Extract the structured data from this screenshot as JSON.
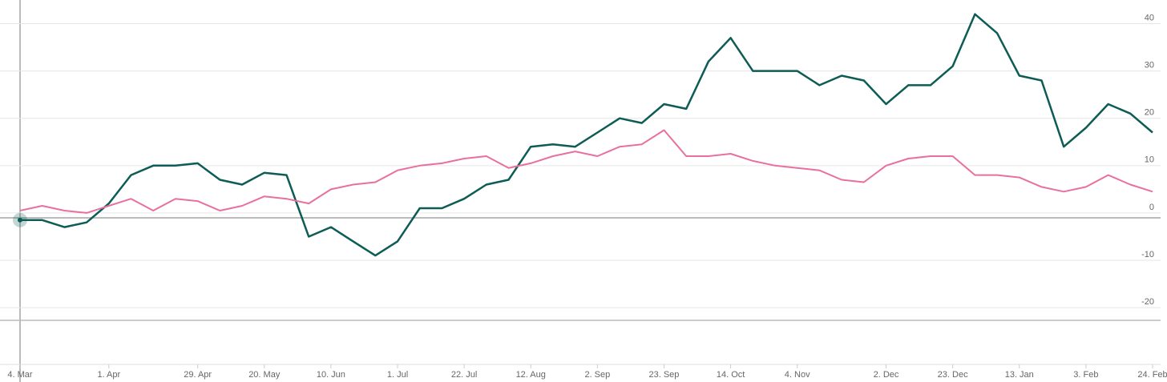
{
  "chart_data": {
    "type": "line",
    "categories": [
      "4. Mar",
      null,
      null,
      null,
      "1. Apr",
      null,
      null,
      null,
      "29. Apr",
      null,
      null,
      "20. May",
      null,
      null,
      "10. Jun",
      null,
      null,
      "1. Jul",
      null,
      null,
      "22. Jul",
      null,
      null,
      "12. Aug",
      null,
      null,
      "2. Sep",
      null,
      null,
      "23. Sep",
      null,
      null,
      "14. Oct",
      null,
      null,
      "4. Nov",
      null,
      null,
      null,
      "2. Dec",
      null,
      null,
      "23. Dec",
      null,
      null,
      "13. Jan",
      null,
      null,
      "3. Feb",
      null,
      null,
      "24. Feb"
    ],
    "series": [
      {
        "color": "#0d5c55",
        "values": [
          -1.5,
          -1.5,
          -3,
          -2,
          2,
          8,
          10,
          10,
          10.5,
          7,
          6,
          8.5,
          8,
          -5,
          -3,
          -6,
          -9,
          -6,
          1,
          1,
          3,
          6,
          7,
          14,
          14.5,
          14,
          17,
          20,
          19,
          23,
          22,
          32,
          37,
          30,
          30,
          30,
          27,
          29,
          28,
          23,
          27,
          27,
          31,
          42,
          38,
          29,
          28,
          14,
          18,
          23,
          21,
          17
        ]
      },
      {
        "color": "#e8709f",
        "values": [
          0.5,
          1.5,
          0.5,
          0,
          1.5,
          3,
          0.5,
          3,
          2.5,
          0.5,
          1.5,
          3.5,
          3,
          2,
          5,
          6,
          6.5,
          9,
          10,
          10.5,
          11.5,
          12,
          9.5,
          10.5,
          12,
          13,
          12,
          14,
          14.5,
          17.5,
          12,
          12,
          12.5,
          11,
          10,
          9.5,
          9,
          7,
          6.5,
          10,
          11.5,
          12,
          12,
          8,
          8,
          7.5,
          5.5,
          4.5,
          5.5,
          8,
          6,
          4.5
        ]
      }
    ],
    "ylim": [
      -32,
      45
    ],
    "yticks": [
      -20,
      -10,
      0,
      10,
      20,
      30,
      40
    ],
    "grid": true
  }
}
